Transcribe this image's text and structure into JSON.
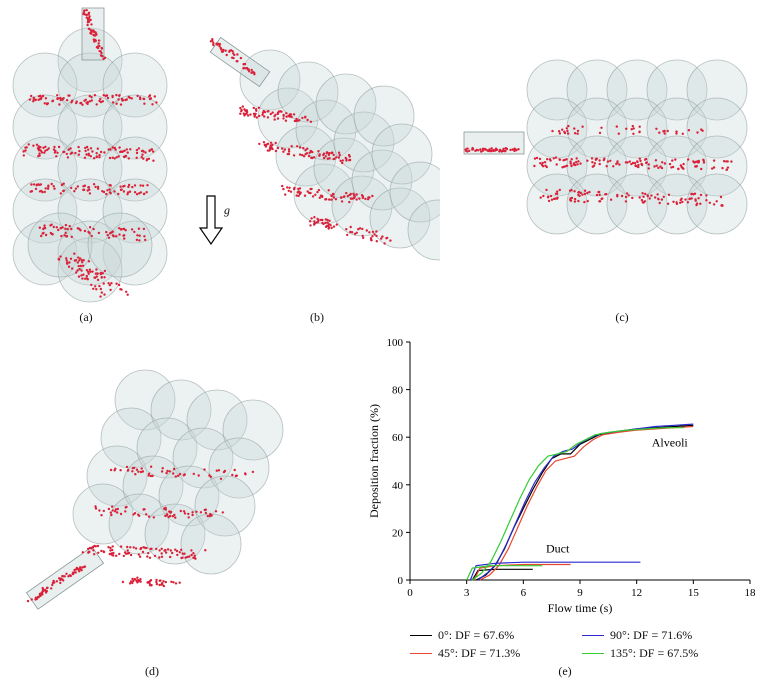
{
  "panels": {
    "a_label": "(a)",
    "b_label": "(b)",
    "c_label": "(c)",
    "d_label": "(d)",
    "e_label": "(e)",
    "gravity_label": "g"
  },
  "colors": {
    "particle": "#d9223a",
    "sphere_fill": "#c9d6d6",
    "sphere_stroke": "#8a9a9a",
    "black": "#000000",
    "red": "#e8482e",
    "blue": "#2a2ad0",
    "green": "#33cc33"
  },
  "chart_data": {
    "type": "line",
    "xlabel": "Flow time (s)",
    "ylabel": "Deposition fraction (%)",
    "xlim": [
      0,
      18
    ],
    "ylim": [
      0,
      100
    ],
    "xticks": [
      "0",
      "3",
      "6",
      "9",
      "12",
      "15",
      "18"
    ],
    "yticks": [
      "0",
      "20",
      "40",
      "60",
      "80",
      "100"
    ],
    "annotations": {
      "alveoli": "Alveoli",
      "duct": "Duct"
    },
    "series": [
      {
        "name": "0°: DF = 67.6%",
        "color": "#000000",
        "alveoli": [
          [
            3.5,
            0
          ],
          [
            4,
            2
          ],
          [
            4.5,
            6
          ],
          [
            5,
            13
          ],
          [
            5.5,
            22
          ],
          [
            6,
            30
          ],
          [
            6.5,
            38
          ],
          [
            7,
            45
          ],
          [
            7.5,
            51
          ],
          [
            8,
            53
          ],
          [
            8.5,
            53
          ],
          [
            9,
            57
          ],
          [
            9.5,
            59
          ],
          [
            10,
            61
          ],
          [
            11,
            62.5
          ],
          [
            12,
            63.5
          ],
          [
            13,
            64
          ],
          [
            14,
            64.5
          ],
          [
            15,
            65
          ]
        ],
        "duct": [
          [
            3.3,
            0
          ],
          [
            3.6,
            4
          ],
          [
            4.5,
            4.5
          ],
          [
            5.5,
            4.5
          ],
          [
            6.5,
            4.5
          ]
        ]
      },
      {
        "name": "45°: DF = 71.3%",
        "color": "#e8482e",
        "alveoli": [
          [
            3.7,
            0
          ],
          [
            4.2,
            2
          ],
          [
            4.7,
            6
          ],
          [
            5.2,
            13
          ],
          [
            5.7,
            22
          ],
          [
            6.2,
            31
          ],
          [
            6.7,
            39
          ],
          [
            7.2,
            46
          ],
          [
            7.7,
            50
          ],
          [
            8.2,
            51
          ],
          [
            8.7,
            52
          ],
          [
            9.2,
            56
          ],
          [
            9.7,
            59
          ],
          [
            10.2,
            61
          ],
          [
            11,
            62
          ],
          [
            12,
            63
          ],
          [
            13,
            63.5
          ],
          [
            14,
            64
          ],
          [
            15,
            64.5
          ]
        ],
        "duct": [
          [
            3.4,
            0
          ],
          [
            3.7,
            5
          ],
          [
            4.5,
            6
          ],
          [
            6,
            6.5
          ],
          [
            7.5,
            6.5
          ],
          [
            8.5,
            6.5
          ]
        ]
      },
      {
        "name": "90°: DF = 71.6%",
        "color": "#2a2ad0",
        "alveoli": [
          [
            3.6,
            0
          ],
          [
            4.1,
            3
          ],
          [
            4.6,
            7
          ],
          [
            5.1,
            15
          ],
          [
            5.6,
            24
          ],
          [
            6.1,
            33
          ],
          [
            6.6,
            41
          ],
          [
            7.1,
            47
          ],
          [
            7.6,
            52
          ],
          [
            8.1,
            54
          ],
          [
            8.6,
            55
          ],
          [
            9.1,
            58
          ],
          [
            9.6,
            60
          ],
          [
            10.1,
            61.5
          ],
          [
            11,
            62.5
          ],
          [
            12,
            63.5
          ],
          [
            13,
            64.5
          ],
          [
            14,
            65
          ],
          [
            15,
            65.5
          ]
        ],
        "duct": [
          [
            3.2,
            0
          ],
          [
            3.5,
            6
          ],
          [
            4.5,
            7
          ],
          [
            6,
            7.5
          ],
          [
            8,
            7.5
          ],
          [
            10,
            7.5
          ],
          [
            12.2,
            7.5
          ]
        ]
      },
      {
        "name": "135°: DF = 67.5%",
        "color": "#33cc33",
        "alveoli": [
          [
            3.3,
            0
          ],
          [
            3.8,
            3
          ],
          [
            4.3,
            8
          ],
          [
            4.8,
            16
          ],
          [
            5.3,
            25
          ],
          [
            5.8,
            34
          ],
          [
            6.3,
            42
          ],
          [
            6.8,
            48
          ],
          [
            7.3,
            52
          ],
          [
            7.8,
            53
          ],
          [
            8.3,
            54
          ],
          [
            8.8,
            57
          ],
          [
            9.3,
            59
          ],
          [
            9.8,
            61
          ],
          [
            10.5,
            62
          ],
          [
            11.5,
            63
          ],
          [
            12.5,
            63.5
          ],
          [
            13.5,
            64
          ],
          [
            14.5,
            64
          ]
        ],
        "duct": [
          [
            3.0,
            0
          ],
          [
            3.3,
            5
          ],
          [
            4.2,
            6
          ],
          [
            5.5,
            6
          ],
          [
            7,
            6
          ]
        ]
      }
    ],
    "legend_position": "bottom"
  }
}
